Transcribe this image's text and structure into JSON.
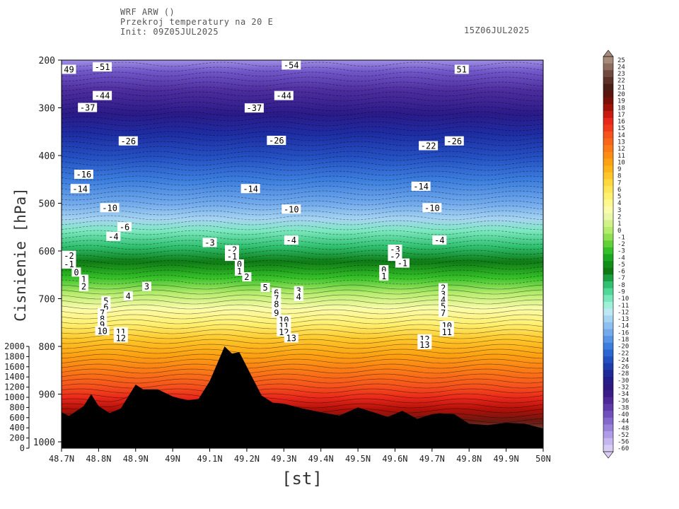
{
  "header": {
    "line1": "WRF ARW ()",
    "line2": "Przekroj temperatury na 20 E",
    "line3": "Init: 09Z05JUL2025",
    "valid": "15Z06JUL2025"
  },
  "chart_data": {
    "type": "heatmap",
    "title": "Przekroj temperatury na 20 E",
    "xlabel": "[st]",
    "ylabel": "Cisnienie [hPa]",
    "x_ticks": [
      "48.7N",
      "48.8N",
      "48.9N",
      "49N",
      "49.1N",
      "49.2N",
      "49.3N",
      "49.4N",
      "49.5N",
      "49.6N",
      "49.7N",
      "49.8N",
      "49.9N",
      "50N"
    ],
    "xlim": [
      48.7,
      50.0
    ],
    "y_ticks": [
      "200",
      "300",
      "400",
      "500",
      "600",
      "700",
      "800",
      "900",
      "1000"
    ],
    "ylim": [
      1000,
      200
    ],
    "height_ticks": [
      "2000",
      "1800",
      "1600",
      "1400",
      "1200",
      "1000",
      "800",
      "600",
      "400",
      "200",
      "0"
    ],
    "colorbar": {
      "labels": [
        "25",
        "24",
        "23",
        "22",
        "21",
        "20",
        "19",
        "18",
        "17",
        "16",
        "15",
        "14",
        "13",
        "12",
        "11",
        "10",
        "9",
        "8",
        "7",
        "6",
        "5",
        "4",
        "3",
        "2",
        "1",
        "0",
        "-1",
        "-2",
        "-3",
        "-4",
        "-5",
        "-6",
        "-7",
        "-8",
        "-9",
        "-10",
        "-11",
        "-12",
        "-13",
        "-14",
        "-16",
        "-18",
        "-20",
        "-22",
        "-24",
        "-26",
        "-28",
        "-30",
        "-32",
        "-34",
        "-36",
        "-38",
        "-40",
        "-44",
        "-48",
        "-52",
        "-56",
        "-60"
      ],
      "colors": [
        "#a88a7a",
        "#8c6c5c",
        "#704a3e",
        "#5c3228",
        "#4a1f16",
        "#5a150c",
        "#7a1008",
        "#a01208",
        "#c81a0e",
        "#e8281a",
        "#f03a1c",
        "#f5521c",
        "#f8661a",
        "#fa7a16",
        "#fb8e12",
        "#fca212",
        "#fdb418",
        "#fec62a",
        "#ffd83e",
        "#ffe656",
        "#fff070",
        "#fff88e",
        "#fbfcaa",
        "#e8f8a6",
        "#d0f288",
        "#b4ec6c",
        "#8ee050",
        "#60d238",
        "#34c028",
        "#1aa820",
        "#108e18",
        "#0e7a14",
        "#1aa040",
        "#30c070",
        "#50d898",
        "#78e8bc",
        "#9ef0d8",
        "#bce8f4",
        "#a6d4f2",
        "#8cc0f0",
        "#72aaec",
        "#5694e6",
        "#3c7ede",
        "#2c66d2",
        "#2250c0",
        "#1e3cac",
        "#1e2a98",
        "#241c88",
        "#2c1880",
        "#3a1c88",
        "#4c2898",
        "#5e3aaa",
        "#7050bc",
        "#8468cc",
        "#9882da",
        "#ae9ce6",
        "#c4b6ee",
        "#d8ccf4"
      ]
    },
    "isotherm_labels": [
      {
        "x": 48.72,
        "p": 220,
        "t": "49"
      },
      {
        "x": 48.81,
        "p": 215,
        "t": "-51"
      },
      {
        "x": 48.81,
        "p": 275,
        "t": "-44"
      },
      {
        "x": 48.77,
        "p": 300,
        "t": "-37"
      },
      {
        "x": 48.88,
        "p": 370,
        "t": "-26"
      },
      {
        "x": 48.76,
        "p": 440,
        "t": "-16"
      },
      {
        "x": 48.75,
        "p": 470,
        "t": "-14"
      },
      {
        "x": 48.83,
        "p": 510,
        "t": "-10"
      },
      {
        "x": 48.87,
        "p": 550,
        "t": "-6"
      },
      {
        "x": 48.84,
        "p": 570,
        "t": "-4"
      },
      {
        "x": 48.72,
        "p": 610,
        "t": "-2"
      },
      {
        "x": 48.72,
        "p": 628,
        "t": "-1"
      },
      {
        "x": 48.74,
        "p": 645,
        "t": "0"
      },
      {
        "x": 48.76,
        "p": 660,
        "t": "1"
      },
      {
        "x": 48.76,
        "p": 675,
        "t": "2"
      },
      {
        "x": 48.93,
        "p": 675,
        "t": "3"
      },
      {
        "x": 48.88,
        "p": 695,
        "t": "4"
      },
      {
        "x": 48.82,
        "p": 705,
        "t": "5"
      },
      {
        "x": 48.82,
        "p": 718,
        "t": "6"
      },
      {
        "x": 48.81,
        "p": 730,
        "t": "7"
      },
      {
        "x": 48.81,
        "p": 743,
        "t": "8"
      },
      {
        "x": 48.81,
        "p": 755,
        "t": "9"
      },
      {
        "x": 48.81,
        "p": 768,
        "t": "10"
      },
      {
        "x": 48.86,
        "p": 770,
        "t": "11"
      },
      {
        "x": 48.86,
        "p": 783,
        "t": "12"
      },
      {
        "x": 49.1,
        "p": 583,
        "t": "-3"
      },
      {
        "x": 49.16,
        "p": 598,
        "t": "-2"
      },
      {
        "x": 49.16,
        "p": 612,
        "t": "-1"
      },
      {
        "x": 49.18,
        "p": 628,
        "t": "0"
      },
      {
        "x": 49.18,
        "p": 643,
        "t": "1"
      },
      {
        "x": 49.2,
        "p": 655,
        "t": "2"
      },
      {
        "x": 49.25,
        "p": 677,
        "t": "5"
      },
      {
        "x": 49.28,
        "p": 688,
        "t": "6"
      },
      {
        "x": 49.28,
        "p": 700,
        "t": "7"
      },
      {
        "x": 49.28,
        "p": 712,
        "t": "8"
      },
      {
        "x": 49.28,
        "p": 730,
        "t": "9"
      },
      {
        "x": 49.3,
        "p": 745,
        "t": "10"
      },
      {
        "x": 49.3,
        "p": 758,
        "t": "11"
      },
      {
        "x": 49.3,
        "p": 770,
        "t": "12"
      },
      {
        "x": 49.32,
        "p": 783,
        "t": "13"
      },
      {
        "x": 49.34,
        "p": 684,
        "t": "3"
      },
      {
        "x": 49.34,
        "p": 696,
        "t": "4"
      },
      {
        "x": 49.22,
        "p": 301,
        "t": "-37"
      },
      {
        "x": 49.3,
        "p": 275,
        "t": "-44"
      },
      {
        "x": 49.32,
        "p": 211,
        "t": "-54"
      },
      {
        "x": 49.28,
        "p": 369,
        "t": "-26"
      },
      {
        "x": 49.21,
        "p": 470,
        "t": "-14"
      },
      {
        "x": 49.32,
        "p": 513,
        "t": "-10"
      },
      {
        "x": 49.32,
        "p": 578,
        "t": "-4"
      },
      {
        "x": 49.6,
        "p": 597,
        "t": "-3"
      },
      {
        "x": 49.6,
        "p": 612,
        "t": "-2"
      },
      {
        "x": 49.62,
        "p": 626,
        "t": "-1"
      },
      {
        "x": 49.57,
        "p": 640,
        "t": "0"
      },
      {
        "x": 49.57,
        "p": 653,
        "t": "1"
      },
      {
        "x": 49.69,
        "p": 380,
        "t": "-22"
      },
      {
        "x": 49.67,
        "p": 465,
        "t": "-14"
      },
      {
        "x": 49.7,
        "p": 510,
        "t": "-10"
      },
      {
        "x": 49.72,
        "p": 578,
        "t": "-4"
      },
      {
        "x": 49.78,
        "p": 220,
        "t": "51"
      },
      {
        "x": 49.76,
        "p": 370,
        "t": "-26"
      },
      {
        "x": 49.73,
        "p": 678,
        "t": "2"
      },
      {
        "x": 49.73,
        "p": 691,
        "t": "3"
      },
      {
        "x": 49.73,
        "p": 703,
        "t": "4"
      },
      {
        "x": 49.73,
        "p": 716,
        "t": "5"
      },
      {
        "x": 49.73,
        "p": 730,
        "t": "7"
      },
      {
        "x": 49.74,
        "p": 757,
        "t": "10"
      },
      {
        "x": 49.74,
        "p": 770,
        "t": "11"
      },
      {
        "x": 49.68,
        "p": 785,
        "t": "12"
      },
      {
        "x": 49.68,
        "p": 797,
        "t": "13"
      }
    ],
    "terrain_profile": {
      "x": [
        48.7,
        48.72,
        48.76,
        48.78,
        48.8,
        48.83,
        48.86,
        48.9,
        48.92,
        48.96,
        49.0,
        49.04,
        49.07,
        49.1,
        49.14,
        49.16,
        49.18,
        49.21,
        49.24,
        49.27,
        49.3,
        49.35,
        49.4,
        49.45,
        49.5,
        49.55,
        49.58,
        49.62,
        49.66,
        49.7,
        49.72,
        49.76,
        49.8,
        49.85,
        49.9,
        49.95,
        50.0
      ],
      "p": [
        938,
        946,
        925,
        900,
        925,
        940,
        930,
        880,
        890,
        890,
        905,
        913,
        910,
        873,
        800,
        815,
        812,
        858,
        903,
        918,
        920,
        930,
        938,
        945,
        928,
        940,
        948,
        935,
        952,
        942,
        940,
        942,
        962,
        965,
        960,
        962,
        972
      ]
    }
  }
}
